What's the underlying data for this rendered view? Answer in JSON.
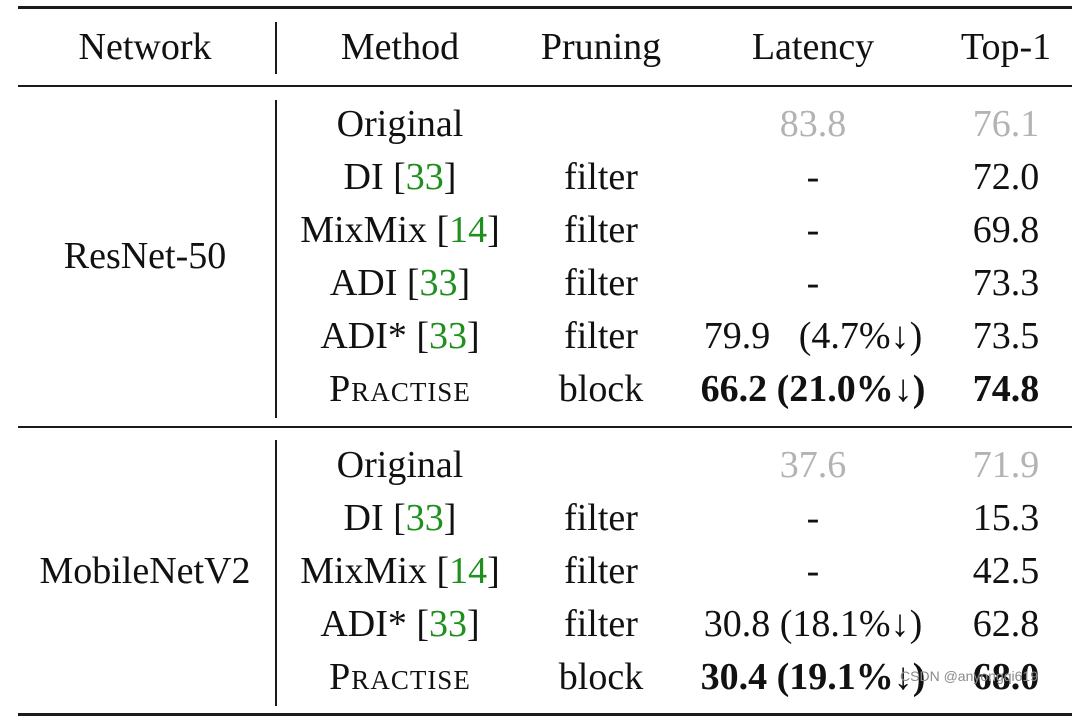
{
  "header": {
    "network": "Network",
    "method": "Method",
    "pruning": "Pruning",
    "latency": "Latency",
    "top1": "Top-1"
  },
  "groups": [
    {
      "network": "ResNet-50",
      "rows": [
        {
          "method": "Original",
          "cite": "",
          "pruning": "",
          "latency": "83.8",
          "latency_pct": "",
          "top1": "76.1"
        },
        {
          "method": "DI",
          "cite": "33",
          "pruning": "filter",
          "latency": "-",
          "latency_pct": "",
          "top1": "72.0"
        },
        {
          "method": "MixMix",
          "cite": "14",
          "pruning": "filter",
          "latency": "-",
          "latency_pct": "",
          "top1": "69.8"
        },
        {
          "method": "ADI",
          "cite": "33",
          "pruning": "filter",
          "latency": "-",
          "latency_pct": "",
          "top1": "73.3"
        },
        {
          "method": "ADI*",
          "cite": "33",
          "pruning": "filter",
          "latency": "79.9",
          "latency_pct": "(4.7%↓)",
          "top1": "73.5"
        },
        {
          "method": "Practise",
          "cite": "",
          "pruning": "block",
          "latency": "66.2",
          "latency_pct": "(21.0%↓)",
          "top1": "74.8"
        }
      ]
    },
    {
      "network": "MobileNetV2",
      "rows": [
        {
          "method": "Original",
          "cite": "",
          "pruning": "",
          "latency": "37.6",
          "latency_pct": "",
          "top1": "71.9"
        },
        {
          "method": "DI",
          "cite": "33",
          "pruning": "filter",
          "latency": "-",
          "latency_pct": "",
          "top1": "15.3"
        },
        {
          "method": "MixMix",
          "cite": "14",
          "pruning": "filter",
          "latency": "-",
          "latency_pct": "",
          "top1": "42.5"
        },
        {
          "method": "ADI*",
          "cite": "33",
          "pruning": "filter",
          "latency": "30.8",
          "latency_pct": "(18.1%↓)",
          "top1": "62.8"
        },
        {
          "method": "Practise",
          "cite": "",
          "pruning": "block",
          "latency": "30.4",
          "latency_pct": "(19.1%↓)",
          "top1": "68.0"
        }
      ]
    }
  ],
  "colors": {
    "cite": "#1f8f1f",
    "baseline": "#b3b3b3",
    "text": "#111111"
  },
  "watermark": "CSDN @anyongqi619"
}
